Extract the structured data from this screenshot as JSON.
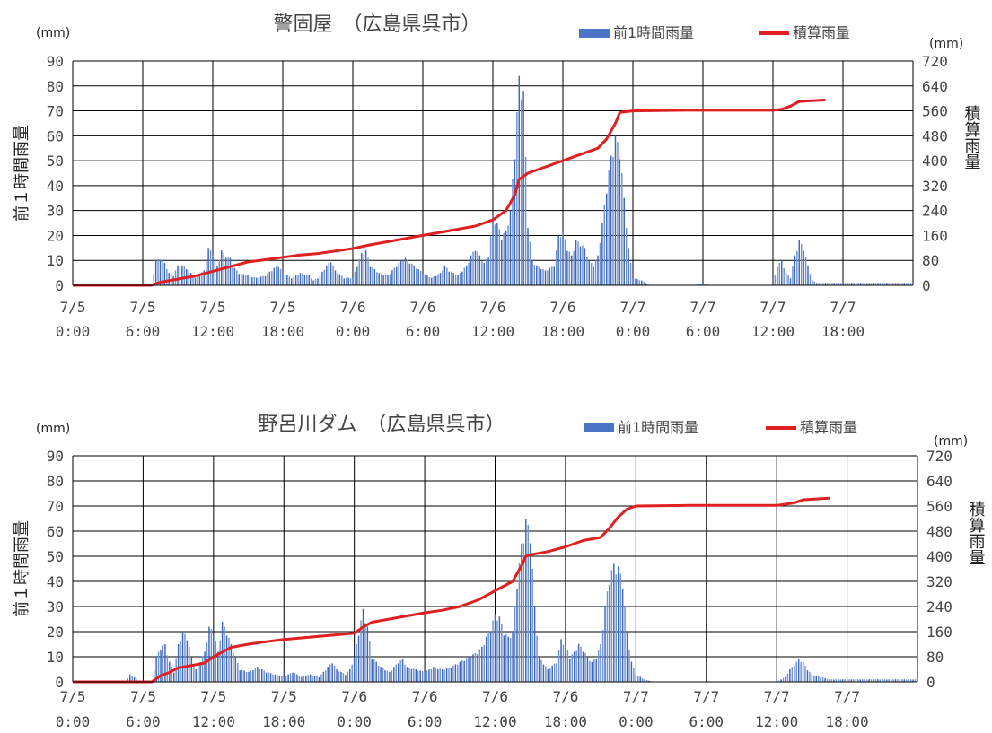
{
  "chart_data": [
    {
      "type": "bar+line",
      "title": "警固屋　（広島県呉市）",
      "legend": {
        "bar": "前1時間雨量",
        "line": "積算雨量",
        "placement": "top-right"
      },
      "ylabel": "前１時間雨量",
      "y2label": "積算雨量",
      "yunit": "(mm)",
      "y2unit": "(mm)",
      "ylim": [
        0,
        90
      ],
      "y2lim": [
        0,
        720
      ],
      "yticks": [
        "0",
        "10",
        "20",
        "30",
        "40",
        "50",
        "60",
        "70",
        "80",
        "90"
      ],
      "y2ticks": [
        "0",
        "80",
        "160",
        "240",
        "320",
        "400",
        "480",
        "560",
        "640",
        "720"
      ],
      "xticks": [
        {
          "date": "7/5",
          "time": "0:00"
        },
        {
          "date": "7/5",
          "time": "6:00"
        },
        {
          "date": "7/5",
          "time": "12:00"
        },
        {
          "date": "7/5",
          "time": "18:00"
        },
        {
          "date": "7/6",
          "time": "0:00"
        },
        {
          "date": "7/6",
          "time": "6:00"
        },
        {
          "date": "7/6",
          "time": "12:00"
        },
        {
          "date": "7/6",
          "time": "18:00"
        },
        {
          "date": "7/7",
          "time": "0:00"
        },
        {
          "date": "7/7",
          "time": "6:00"
        },
        {
          "date": "7/7",
          "time": "12:00"
        },
        {
          "date": "7/7",
          "time": "18:00"
        }
      ],
      "grid": true,
      "bar_points": [
        [
          9,
          0
        ],
        [
          9.5,
          10
        ],
        [
          10,
          11
        ],
        [
          10.5,
          9
        ],
        [
          11,
          5
        ],
        [
          11.5,
          4
        ],
        [
          12,
          8
        ],
        [
          12.5,
          8
        ],
        [
          13,
          7
        ],
        [
          13.5,
          5
        ],
        [
          14,
          3
        ],
        [
          15,
          6
        ],
        [
          15.5,
          15
        ],
        [
          16,
          13
        ],
        [
          16.5,
          8
        ],
        [
          17,
          14
        ],
        [
          17.5,
          12
        ],
        [
          18,
          11
        ],
        [
          18.5,
          7
        ],
        [
          19,
          5
        ],
        [
          20,
          4
        ],
        [
          21,
          3
        ],
        [
          22,
          4
        ],
        [
          23,
          7
        ],
        [
          23.5,
          8
        ],
        [
          24,
          5
        ],
        [
          25,
          3
        ],
        [
          26,
          5
        ],
        [
          27,
          4
        ],
        [
          27.5,
          2
        ],
        [
          28,
          3
        ],
        [
          29,
          8
        ],
        [
          29.5,
          10
        ],
        [
          30,
          6
        ],
        [
          31,
          3
        ],
        [
          32,
          3
        ],
        [
          33,
          13
        ],
        [
          33.5,
          14
        ],
        [
          34,
          8
        ],
        [
          35,
          5
        ],
        [
          36,
          4
        ],
        [
          37,
          8
        ],
        [
          37.5,
          10
        ],
        [
          38,
          11
        ],
        [
          39,
          8
        ],
        [
          40,
          5
        ],
        [
          41,
          3
        ],
        [
          42,
          5
        ],
        [
          42.5,
          8
        ],
        [
          43,
          6
        ],
        [
          44,
          4
        ],
        [
          45,
          8
        ],
        [
          45.5,
          12
        ],
        [
          46,
          15
        ],
        [
          46.5,
          12
        ],
        [
          47,
          9
        ],
        [
          47.5,
          12
        ],
        [
          48,
          28
        ],
        [
          48.5,
          25
        ],
        [
          49,
          20
        ],
        [
          49.5,
          22
        ],
        [
          50,
          30
        ],
        [
          50.5,
          55
        ],
        [
          51,
          84
        ],
        [
          51.5,
          78
        ],
        [
          52,
          25
        ],
        [
          52.5,
          10
        ],
        [
          53,
          8
        ],
        [
          54,
          6
        ],
        [
          55,
          8
        ],
        [
          55.5,
          20
        ],
        [
          56,
          22
        ],
        [
          56.5,
          15
        ],
        [
          57,
          12
        ],
        [
          57.5,
          18
        ],
        [
          58,
          17
        ],
        [
          58.5,
          15
        ],
        [
          59,
          10
        ],
        [
          59.5,
          8
        ],
        [
          60,
          12
        ],
        [
          60.5,
          25
        ],
        [
          61,
          40
        ],
        [
          61.5,
          52
        ],
        [
          62,
          60
        ],
        [
          62.5,
          55
        ],
        [
          63,
          35
        ],
        [
          63.5,
          15
        ],
        [
          64,
          3
        ],
        [
          65,
          2
        ],
        [
          66,
          0
        ],
        [
          71,
          0
        ],
        [
          72,
          1
        ],
        [
          73,
          0
        ],
        [
          80,
          0
        ],
        [
          80.5,
          8
        ],
        [
          81,
          10
        ],
        [
          81.5,
          5
        ],
        [
          82,
          3
        ],
        [
          82.5,
          12
        ],
        [
          83,
          18
        ],
        [
          83.5,
          15
        ],
        [
          84,
          8
        ],
        [
          84.5,
          2
        ],
        [
          85,
          1
        ],
        [
          86,
          1
        ]
      ],
      "line_points": [
        [
          0,
          0
        ],
        [
          9,
          0
        ],
        [
          10,
          10
        ],
        [
          12,
          20
        ],
        [
          14,
          30
        ],
        [
          16,
          45
        ],
        [
          18,
          60
        ],
        [
          20,
          75
        ],
        [
          22,
          82
        ],
        [
          24,
          90
        ],
        [
          26,
          97
        ],
        [
          28,
          102
        ],
        [
          30,
          110
        ],
        [
          32,
          118
        ],
        [
          34,
          130
        ],
        [
          36,
          140
        ],
        [
          38,
          150
        ],
        [
          40,
          160
        ],
        [
          42,
          170
        ],
        [
          44,
          180
        ],
        [
          46,
          190
        ],
        [
          48,
          210
        ],
        [
          49.5,
          240
        ],
        [
          50.5,
          290
        ],
        [
          51,
          340
        ],
        [
          52,
          360
        ],
        [
          54,
          380
        ],
        [
          56,
          400
        ],
        [
          58,
          420
        ],
        [
          60,
          440
        ],
        [
          61,
          470
        ],
        [
          62,
          520
        ],
        [
          62.5,
          555
        ],
        [
          64,
          560
        ],
        [
          70,
          562
        ],
        [
          80,
          562
        ],
        [
          81,
          565
        ],
        [
          82,
          575
        ],
        [
          83,
          590
        ],
        [
          86,
          595
        ]
      ]
    },
    {
      "type": "bar+line",
      "title": "野呂川ダム　（広島県呉市）",
      "legend": {
        "bar": "前1時間雨量",
        "line": "積算雨量",
        "placement": "top-right"
      },
      "ylabel": "前１時間雨量",
      "y2label": "積算雨量",
      "yunit": "(mm)",
      "y2unit": "(mm)",
      "ylim": [
        0,
        90
      ],
      "y2lim": [
        0,
        720
      ],
      "yticks": [
        "0",
        "10",
        "20",
        "30",
        "40",
        "50",
        "60",
        "70",
        "80",
        "90"
      ],
      "y2ticks": [
        "0",
        "80",
        "160",
        "240",
        "320",
        "400",
        "480",
        "560",
        "640",
        "720"
      ],
      "xticks": [
        {
          "date": "7/5",
          "time": "0:00"
        },
        {
          "date": "7/5",
          "time": "6:00"
        },
        {
          "date": "7/5",
          "time": "12:00"
        },
        {
          "date": "7/5",
          "time": "18:00"
        },
        {
          "date": "7/6",
          "time": "0:00"
        },
        {
          "date": "7/6",
          "time": "6:00"
        },
        {
          "date": "7/6",
          "time": "12:00"
        },
        {
          "date": "7/6",
          "time": "18:00"
        },
        {
          "date": "7/7",
          "time": "0:00"
        },
        {
          "date": "7/7",
          "time": "6:00"
        },
        {
          "date": "7/7",
          "time": "12:00"
        },
        {
          "date": "7/7",
          "time": "18:00"
        }
      ],
      "grid": true,
      "bar_points": [
        [
          0,
          0
        ],
        [
          6,
          0
        ],
        [
          6.5,
          3
        ],
        [
          7,
          2
        ],
        [
          7.5,
          0
        ],
        [
          9,
          0
        ],
        [
          9.5,
          10
        ],
        [
          10,
          14
        ],
        [
          10.5,
          15
        ],
        [
          11,
          8
        ],
        [
          11.5,
          4
        ],
        [
          12,
          15
        ],
        [
          12.5,
          20
        ],
        [
          13,
          18
        ],
        [
          13.5,
          10
        ],
        [
          14,
          5
        ],
        [
          15,
          12
        ],
        [
          15.5,
          22
        ],
        [
          16,
          20
        ],
        [
          16.5,
          12
        ],
        [
          17,
          24
        ],
        [
          17.5,
          20
        ],
        [
          18,
          15
        ],
        [
          18.5,
          10
        ],
        [
          19,
          5
        ],
        [
          20,
          4
        ],
        [
          21,
          6
        ],
        [
          22,
          4
        ],
        [
          23,
          3
        ],
        [
          24,
          2
        ],
        [
          25,
          4
        ],
        [
          26,
          2
        ],
        [
          27,
          3
        ],
        [
          28,
          2
        ],
        [
          29,
          6
        ],
        [
          29.5,
          8
        ],
        [
          30,
          5
        ],
        [
          31,
          3
        ],
        [
          31.5,
          5
        ],
        [
          32,
          10
        ],
        [
          32.5,
          20
        ],
        [
          33,
          29
        ],
        [
          33.5,
          22
        ],
        [
          34,
          10
        ],
        [
          35,
          6
        ],
        [
          36,
          4
        ],
        [
          37,
          8
        ],
        [
          37.5,
          9
        ],
        [
          38,
          6
        ],
        [
          39,
          5
        ],
        [
          40,
          4
        ],
        [
          41,
          6
        ],
        [
          42,
          5
        ],
        [
          43,
          6
        ],
        [
          44,
          8
        ],
        [
          45,
          10
        ],
        [
          46,
          12
        ],
        [
          46.5,
          14
        ],
        [
          47,
          18
        ],
        [
          47.5,
          22
        ],
        [
          48,
          27
        ],
        [
          48.5,
          26
        ],
        [
          49,
          20
        ],
        [
          49.5,
          18
        ],
        [
          50,
          20
        ],
        [
          50.5,
          40
        ],
        [
          51,
          55
        ],
        [
          51.5,
          65
        ],
        [
          52,
          60
        ],
        [
          52.5,
          30
        ],
        [
          53,
          10
        ],
        [
          54,
          5
        ],
        [
          55,
          8
        ],
        [
          55.5,
          17
        ],
        [
          56,
          15
        ],
        [
          56.5,
          10
        ],
        [
          57,
          12
        ],
        [
          57.5,
          15
        ],
        [
          58,
          13
        ],
        [
          58.5,
          10
        ],
        [
          59,
          8
        ],
        [
          59.5,
          10
        ],
        [
          60,
          15
        ],
        [
          60.5,
          30
        ],
        [
          61,
          42
        ],
        [
          61.5,
          47
        ],
        [
          62,
          46
        ],
        [
          62.5,
          40
        ],
        [
          63,
          20
        ],
        [
          63.5,
          8
        ],
        [
          64,
          3
        ],
        [
          65,
          1
        ],
        [
          66,
          0
        ],
        [
          80,
          0
        ],
        [
          81,
          2
        ],
        [
          81.5,
          5
        ],
        [
          82,
          7
        ],
        [
          82.5,
          9
        ],
        [
          83,
          8
        ],
        [
          83.5,
          5
        ],
        [
          84,
          3
        ],
        [
          85,
          2
        ],
        [
          86,
          1
        ]
      ],
      "line_points": [
        [
          0,
          0
        ],
        [
          9,
          0
        ],
        [
          10,
          20
        ],
        [
          11,
          30
        ],
        [
          12,
          45
        ],
        [
          14,
          55
        ],
        [
          15,
          60
        ],
        [
          16,
          80
        ],
        [
          17,
          95
        ],
        [
          18,
          110
        ],
        [
          20,
          120
        ],
        [
          22,
          128
        ],
        [
          24,
          135
        ],
        [
          26,
          140
        ],
        [
          28,
          145
        ],
        [
          30,
          150
        ],
        [
          32,
          155
        ],
        [
          33,
          175
        ],
        [
          34,
          190
        ],
        [
          36,
          200
        ],
        [
          38,
          210
        ],
        [
          40,
          220
        ],
        [
          42,
          228
        ],
        [
          44,
          240
        ],
        [
          46,
          260
        ],
        [
          47,
          275
        ],
        [
          48,
          290
        ],
        [
          50,
          320
        ],
        [
          51,
          370
        ],
        [
          51.5,
          400
        ],
        [
          52,
          405
        ],
        [
          54,
          415
        ],
        [
          56,
          430
        ],
        [
          58,
          450
        ],
        [
          60,
          460
        ],
        [
          61,
          490
        ],
        [
          62,
          525
        ],
        [
          63,
          550
        ],
        [
          64,
          560
        ],
        [
          70,
          562
        ],
        [
          80,
          562
        ],
        [
          82,
          570
        ],
        [
          83,
          580
        ],
        [
          86,
          585
        ]
      ]
    }
  ]
}
